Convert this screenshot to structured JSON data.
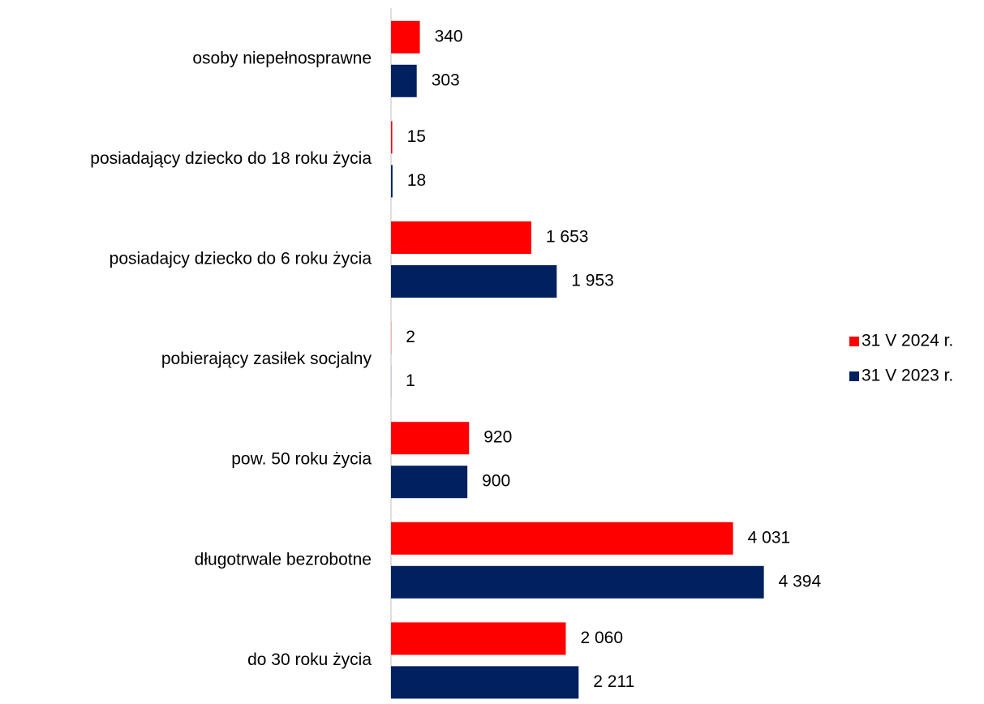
{
  "chart_data": {
    "type": "bar",
    "orientation": "horizontal",
    "categories": [
      "osoby niepełnosprawne",
      "posiadający dziecko do 18 roku życia",
      "posiadajcy dziecko do 6 roku życia",
      "pobierający zasiłek socjalny",
      "pow. 50 roku życia",
      "długotrwale bezrobotne",
      "do 30 roku życia"
    ],
    "series": [
      {
        "name": "31 V 2024 r.",
        "color": "#ff0000",
        "values": [
          340,
          15,
          1653,
          2,
          920,
          4031,
          2060
        ],
        "value_labels": [
          "340",
          "15",
          "1 653",
          "2",
          "920",
          "4 031",
          "2 060"
        ]
      },
      {
        "name": "31 V 2023 r.",
        "color": "#002060",
        "values": [
          303,
          18,
          1953,
          1,
          900,
          4394,
          2211
        ],
        "value_labels": [
          "303",
          "18",
          "1 953",
          "1",
          "900",
          "4 394",
          "2 211"
        ]
      }
    ],
    "xlim": [
      0,
      5000
    ],
    "legend": "right"
  }
}
